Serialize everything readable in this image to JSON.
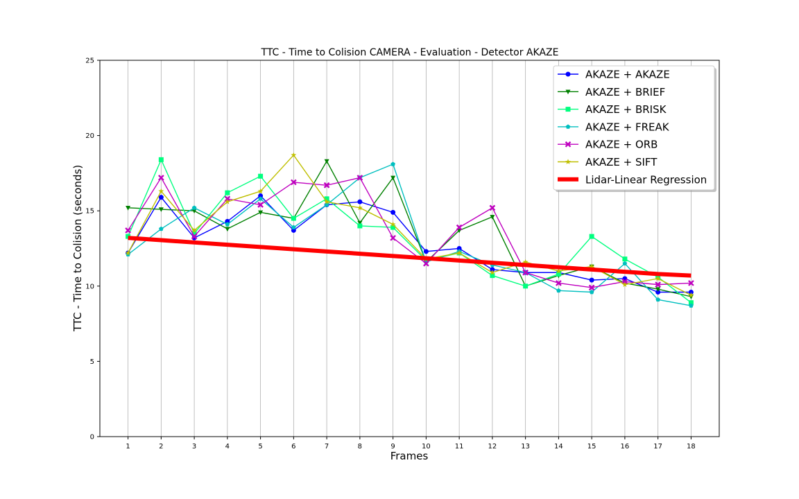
{
  "chart_data": {
    "type": "line",
    "title": "TTC - Time to Colision CAMERA - Evaluation - Detector AKAZE",
    "xlabel": "Frames",
    "ylabel": "TTC - Time to Colision (seconds)",
    "x": [
      1,
      2,
      3,
      4,
      5,
      6,
      7,
      8,
      9,
      10,
      11,
      12,
      13,
      14,
      15,
      16,
      17,
      18
    ],
    "xlim": [
      0.15,
      18.85
    ],
    "ylim": [
      0,
      25
    ],
    "yticks": [
      0,
      5,
      10,
      15,
      20,
      25
    ],
    "grid": "vertical",
    "legend_position": "top-right",
    "series": [
      {
        "name": "AKAZE + AKAZE",
        "color": "#0000ff",
        "marker": "circle",
        "values": [
          12.2,
          15.9,
          13.2,
          14.3,
          16.0,
          13.7,
          15.4,
          15.6,
          14.9,
          12.3,
          12.5,
          11.1,
          10.9,
          10.9,
          10.4,
          10.5,
          9.6,
          9.6
        ]
      },
      {
        "name": "AKAZE + BRIEF",
        "color": "#008000",
        "marker": "triangle-down",
        "values": [
          15.2,
          15.1,
          15.0,
          13.8,
          14.9,
          14.5,
          18.3,
          14.2,
          17.2,
          11.6,
          13.7,
          14.6,
          10.0,
          10.7,
          11.3,
          10.2,
          9.8,
          9.3
        ]
      },
      {
        "name": "AKAZE + BRISK",
        "color": "#00ff7f",
        "marker": "square",
        "values": [
          13.3,
          18.4,
          13.5,
          16.2,
          17.3,
          14.5,
          15.8,
          14.0,
          13.9,
          11.7,
          12.2,
          10.7,
          10.0,
          10.8,
          13.3,
          11.8,
          10.6,
          8.9
        ]
      },
      {
        "name": "AKAZE + FREAK",
        "color": "#00bfbf",
        "marker": "pentagon",
        "values": [
          12.1,
          13.8,
          15.2,
          14.1,
          15.8,
          13.9,
          15.4,
          17.2,
          18.1,
          11.6,
          12.3,
          11.4,
          10.9,
          9.7,
          9.6,
          11.5,
          9.1,
          8.7
        ]
      },
      {
        "name": "AKAZE + ORB",
        "color": "#bf00bf",
        "marker": "x",
        "values": [
          13.7,
          17.2,
          13.3,
          15.8,
          15.4,
          16.9,
          16.7,
          17.2,
          13.2,
          11.5,
          13.9,
          15.2,
          10.9,
          10.2,
          9.9,
          10.3,
          10.1,
          10.2
        ]
      },
      {
        "name": "AKAZE + SIFT",
        "color": "#bfbf00",
        "marker": "star",
        "values": [
          12.2,
          16.3,
          13.7,
          15.6,
          16.3,
          18.7,
          15.6,
          15.2,
          14.1,
          11.8,
          12.2,
          10.9,
          11.6,
          11.0,
          11.3,
          10.1,
          10.5,
          9.4
        ]
      }
    ],
    "regression": {
      "name": "Lidar-Linear Regression",
      "color": "#ff0000",
      "values": [
        13.2,
        13.05,
        12.9,
        12.75,
        12.6,
        12.45,
        12.3,
        12.15,
        12.0,
        11.85,
        11.7,
        11.55,
        11.4,
        11.25,
        11.1,
        10.95,
        10.8,
        10.7
      ]
    }
  }
}
